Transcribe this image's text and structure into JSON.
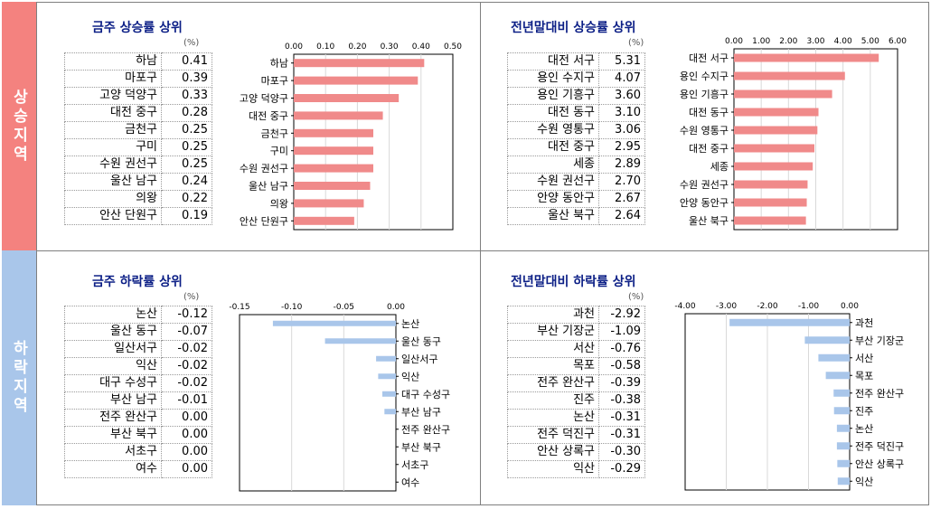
{
  "sections": {
    "up_label": "상승지역",
    "down_label": "하락지역"
  },
  "unit": "(%)",
  "chart_data": [
    {
      "id": "p1",
      "type": "bar",
      "title": "금주 상승률 상위",
      "categories": [
        "하남",
        "마포구",
        "고양 덕양구",
        "대전 중구",
        "금천구",
        "구미",
        "수원 권선구",
        "울산 남구",
        "의왕",
        "안산 단원구"
      ],
      "values": [
        0.41,
        0.39,
        0.33,
        0.28,
        0.25,
        0.25,
        0.25,
        0.24,
        0.22,
        0.19
      ],
      "table_values": [
        "0.41",
        "0.39",
        "0.33",
        "0.28",
        "0.25",
        "0.25",
        "0.25",
        "0.24",
        "0.22",
        "0.19"
      ],
      "xlim": [
        0,
        0.5
      ],
      "ticks": [
        "0.00",
        "0.10",
        "0.20",
        "0.30",
        "0.40",
        "0.50"
      ],
      "tick_values": [
        0,
        0.1,
        0.2,
        0.3,
        0.4,
        0.5
      ],
      "bar_color": "#f08a8a"
    },
    {
      "id": "p2",
      "type": "bar",
      "title": "전년말대비 상승률 상위",
      "categories": [
        "대전 서구",
        "용인 수지구",
        "용인 기흥구",
        "대전 동구",
        "수원 영통구",
        "대전 중구",
        "세종",
        "수원 권선구",
        "안양 동안구",
        "울산 북구"
      ],
      "values": [
        5.31,
        4.07,
        3.6,
        3.1,
        3.06,
        2.95,
        2.89,
        2.7,
        2.67,
        2.64
      ],
      "table_values": [
        "5.31",
        "4.07",
        "3.60",
        "3.10",
        "3.06",
        "2.95",
        "2.89",
        "2.70",
        "2.67",
        "2.64"
      ],
      "xlim": [
        0,
        6
      ],
      "ticks": [
        "0.00",
        "1.00",
        "2.00",
        "3.00",
        "4.00",
        "5.00",
        "6.00"
      ],
      "tick_values": [
        0,
        1,
        2,
        3,
        4,
        5,
        6
      ],
      "bar_color": "#f08a8a"
    },
    {
      "id": "p3",
      "type": "bar",
      "title": "금주 하락률 상위",
      "categories": [
        "논산",
        "울산 동구",
        "일산서구",
        "익산",
        "대구 수성구",
        "부산 남구",
        "전주 완산구",
        "부산 북구",
        "서초구",
        "여수"
      ],
      "values": [
        -0.12,
        -0.07,
        -0.02,
        -0.02,
        -0.02,
        -0.01,
        0.0,
        0.0,
        0.0,
        0.0
      ],
      "plotted_values": [
        -0.118,
        -0.068,
        -0.019,
        -0.017,
        -0.013,
        -0.011,
        0,
        0,
        0,
        0
      ],
      "table_values": [
        "-0.12",
        "-0.07",
        "-0.02",
        "-0.02",
        "-0.02",
        "-0.01",
        "0.00",
        "0.00",
        "0.00",
        "0.00"
      ],
      "xlim": [
        -0.15,
        0
      ],
      "ticks": [
        "-0.15",
        "-0.10",
        "-0.05",
        "0.00"
      ],
      "tick_values": [
        -0.15,
        -0.1,
        -0.05,
        0
      ],
      "bar_color": "#a9c6ea"
    },
    {
      "id": "p4",
      "type": "bar",
      "title": "전년말대비 하락률 상위",
      "categories": [
        "과천",
        "부산 기장군",
        "서산",
        "목포",
        "전주 완산구",
        "진주",
        "논산",
        "전주 덕진구",
        "안산 상록구",
        "익산"
      ],
      "values": [
        -2.92,
        -1.09,
        -0.76,
        -0.58,
        -0.39,
        -0.38,
        -0.31,
        -0.31,
        -0.3,
        -0.29
      ],
      "table_values": [
        "-2.92",
        "-1.09",
        "-0.76",
        "-0.58",
        "-0.39",
        "-0.38",
        "-0.31",
        "-0.31",
        "-0.30",
        "-0.29"
      ],
      "xlim": [
        -4,
        0
      ],
      "ticks": [
        "-4.00",
        "-3.00",
        "-2.00",
        "-1.00",
        "0.00"
      ],
      "tick_values": [
        -4,
        -3,
        -2,
        -1,
        0
      ],
      "bar_color": "#a9c6ea"
    }
  ]
}
